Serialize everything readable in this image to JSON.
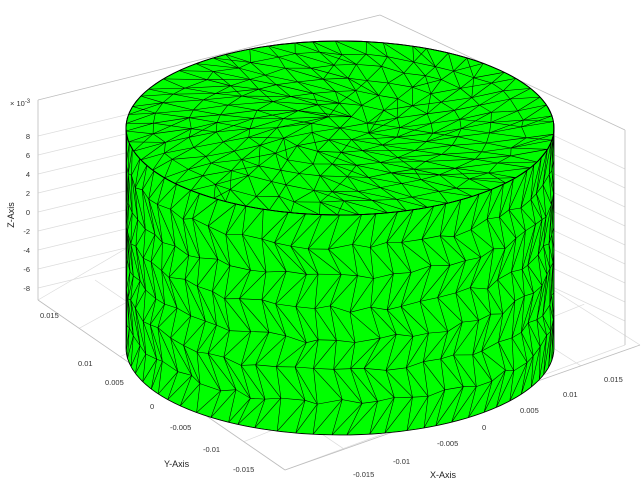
{
  "axes": {
    "x_label": "X-Axis",
    "y_label": "Y-Axis",
    "z_label": "Z-Axis",
    "z_exponent": "× 10",
    "z_exponent_power": "-3",
    "x_ticks": [
      "-0.015",
      "-0.01",
      "-0.005",
      "0",
      "0.005",
      "0.01",
      "0.015"
    ],
    "y_ticks": [
      "0.015",
      "0.01",
      "0.005",
      "0",
      "-0.005",
      "-0.01",
      "-0.015"
    ],
    "z_ticks": [
      "8",
      "6",
      "4",
      "2",
      "0",
      "-2",
      "-4",
      "-6",
      "-8"
    ]
  },
  "mesh": {
    "shape": "cylinder",
    "face_color": "#00ff00",
    "edge_color": "#000000",
    "axial_layers": 7,
    "circumferential_segments": 36
  }
}
